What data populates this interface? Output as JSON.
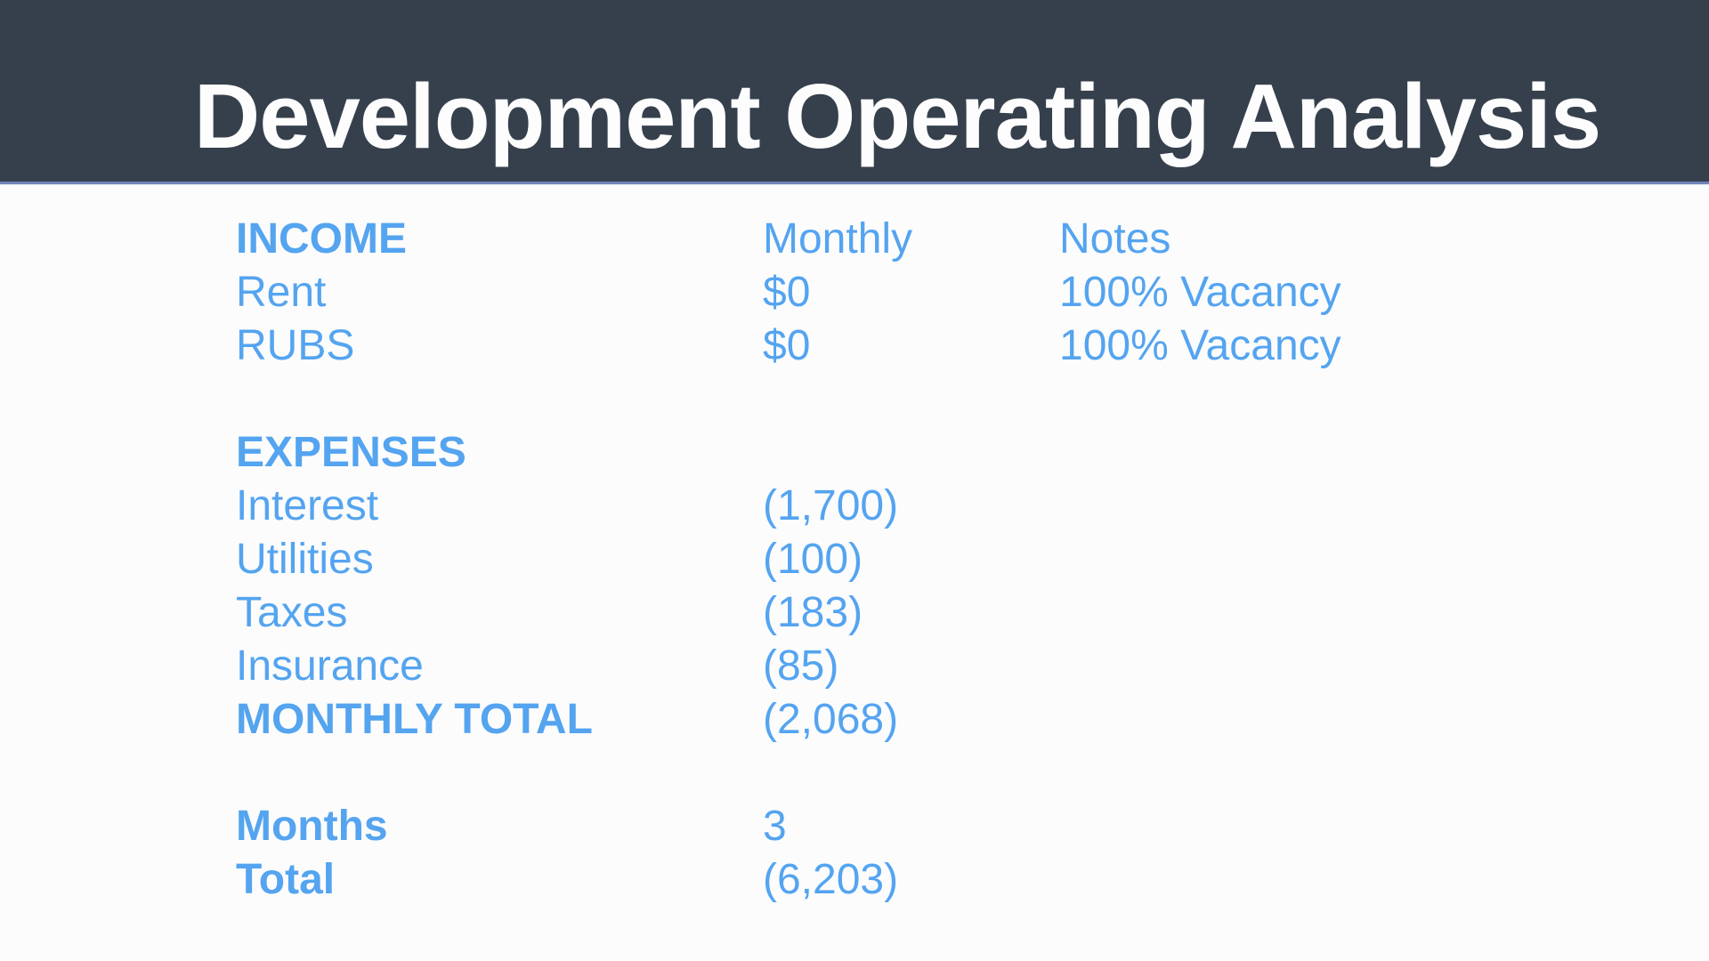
{
  "slide": {
    "title": "Development Operating Analysis"
  },
  "colors": {
    "header_background": "#36404c",
    "header_border": "#6f84b6",
    "header_border_light": "#dde3f0",
    "accent_text": "#54a4f0",
    "title_text": "#fdfdfe",
    "body_background": "#fcfcfc"
  },
  "table": {
    "rows": [
      {
        "label": "INCOME",
        "value": "Monthly",
        "note": "Notes",
        "bold": true
      },
      {
        "label": "Rent",
        "value": "$0",
        "note": "100% Vacancy",
        "bold": false
      },
      {
        "label": "RUBS",
        "value": "$0",
        "note": "100% Vacancy",
        "bold": false
      },
      {
        "spacer": true
      },
      {
        "label": "EXPENSES",
        "value": "",
        "note": "",
        "bold": true
      },
      {
        "label": "Interest",
        "value": "(1,700)",
        "note": "",
        "bold": false
      },
      {
        "label": "Utilities",
        "value": "(100)",
        "note": "",
        "bold": false
      },
      {
        "label": "Taxes",
        "value": "(183)",
        "note": "",
        "bold": false
      },
      {
        "label": "Insurance",
        "value": "(85)",
        "note": "",
        "bold": false
      },
      {
        "label": "MONTHLY TOTAL",
        "value": "(2,068)",
        "note": "",
        "bold": true
      },
      {
        "spacer": true
      },
      {
        "label": "Months",
        "value": "3",
        "note": "",
        "bold": true
      },
      {
        "label": "Total",
        "value": "(6,203)",
        "note": "",
        "bold": true
      }
    ]
  }
}
